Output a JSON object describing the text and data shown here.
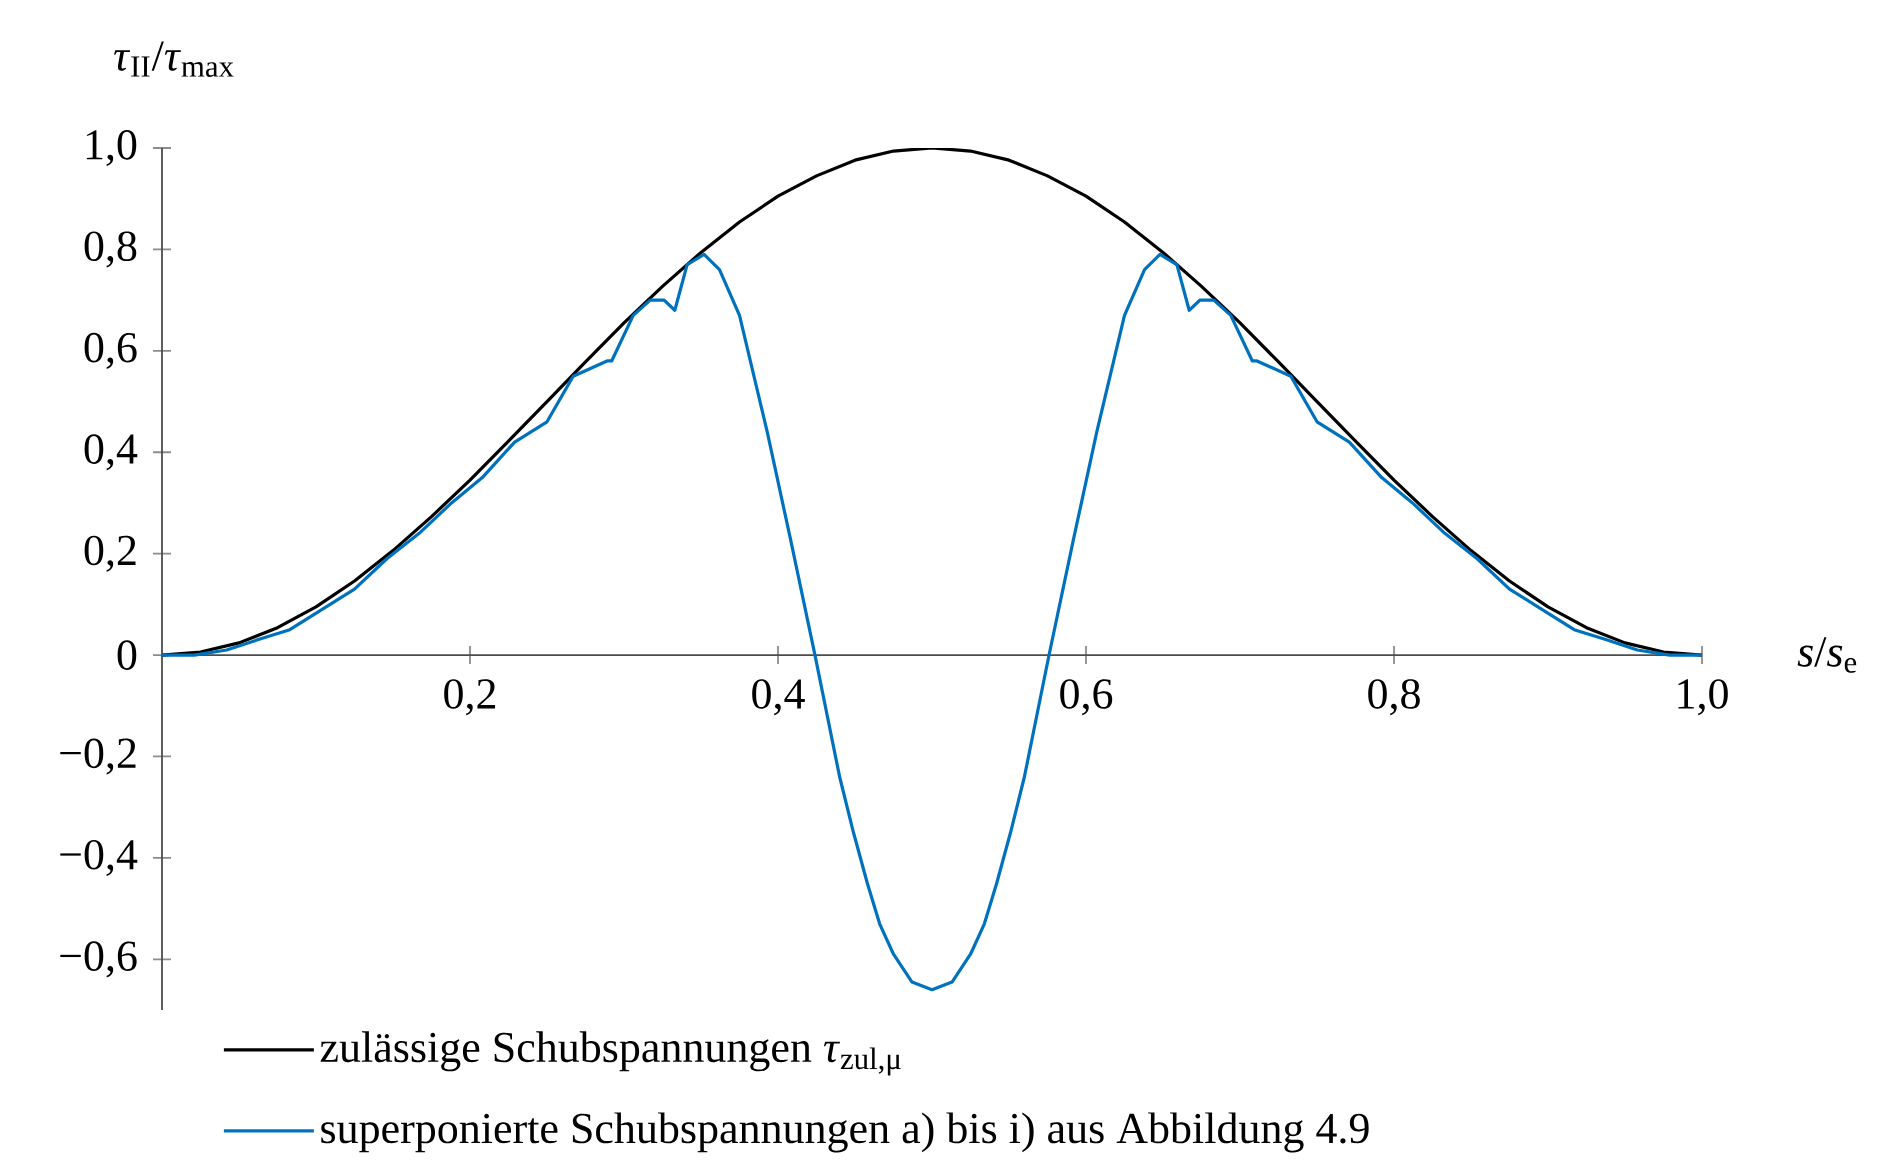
{
  "chart_data": {
    "type": "line",
    "xlabel": "*s*/*s*$_{e}$",
    "ylabel": "*τ*$_{II}$/*τ*$_{max}$",
    "xlim": [
      0,
      1.0
    ],
    "ylim": [
      -0.7,
      1.0
    ],
    "xticks": [
      {
        "value": 0.2,
        "label": "0,2"
      },
      {
        "value": 0.4,
        "label": "0,4"
      },
      {
        "value": 0.6,
        "label": "0,6"
      },
      {
        "value": 0.8,
        "label": "0,8"
      },
      {
        "value": 1.0,
        "label": "1,0"
      }
    ],
    "yticks": [
      {
        "value": -0.6,
        "label": "−0,6"
      },
      {
        "value": -0.4,
        "label": "−0,4"
      },
      {
        "value": -0.2,
        "label": "−0,2"
      },
      0,
      {
        "value": 0.2,
        "label": "0,2"
      },
      {
        "value": 0.4,
        "label": "0,4"
      },
      {
        "value": 0.6,
        "label": "0,6"
      },
      {
        "value": 0.8,
        "label": "0,8"
      },
      {
        "value": 1.0,
        "label": "1,0"
      }
    ],
    "legend": "bottom",
    "series": [
      {
        "name": "zulässige Schubspannungen *τ*$_{zul,μ}$",
        "color": "#000000",
        "x": [
          0,
          0.025,
          0.05,
          0.075,
          0.1,
          0.125,
          0.15,
          0.175,
          0.2,
          0.225,
          0.25,
          0.275,
          0.3,
          0.325,
          0.35,
          0.375,
          0.4,
          0.425,
          0.45,
          0.475,
          0.5,
          0.525,
          0.55,
          0.575,
          0.6,
          0.625,
          0.65,
          0.675,
          0.7,
          0.725,
          0.75,
          0.775,
          0.8,
          0.825,
          0.85,
          0.875,
          0.9,
          0.925,
          0.95,
          0.975,
          1.0
        ],
        "values": [
          0,
          0.006,
          0.024,
          0.054,
          0.095,
          0.146,
          0.206,
          0.273,
          0.345,
          0.422,
          0.5,
          0.578,
          0.655,
          0.727,
          0.794,
          0.854,
          0.905,
          0.945,
          0.976,
          0.994,
          1.0,
          0.994,
          0.976,
          0.945,
          0.905,
          0.854,
          0.794,
          0.727,
          0.655,
          0.578,
          0.5,
          0.422,
          0.345,
          0.273,
          0.206,
          0.146,
          0.095,
          0.054,
          0.024,
          0.006,
          0
        ]
      },
      {
        "name": "superponierte Schubspannungen a) bis i) aus Abbildung 4.9",
        "color": "#0072bd",
        "x": [
          0,
          0.021,
          0.042,
          0.062,
          0.083,
          0.104,
          0.125,
          0.146,
          0.167,
          0.188,
          0.208,
          0.229,
          0.25,
          0.267,
          0.289,
          0.292,
          0.306,
          0.317,
          0.326,
          0.333,
          0.341,
          0.352,
          0.362,
          0.375,
          0.384,
          0.393,
          0.408,
          0.424,
          0.44,
          0.449,
          0.458,
          0.466,
          0.475,
          0.487,
          0.5,
          0.513,
          0.525,
          0.534,
          0.542,
          0.551,
          0.56,
          0.576,
          0.592,
          0.607,
          0.616,
          0.625,
          0.638,
          0.648,
          0.659,
          0.667,
          0.674,
          0.683,
          0.694,
          0.708,
          0.711,
          0.733,
          0.75,
          0.771,
          0.792,
          0.812,
          0.833,
          0.854,
          0.875,
          0.896,
          0.917,
          0.938,
          0.958,
          0.979,
          1.0
        ],
        "values": [
          0,
          0,
          0.01,
          0.03,
          0.05,
          0.09,
          0.13,
          0.19,
          0.24,
          0.3,
          0.35,
          0.42,
          0.46,
          0.55,
          0.58,
          0.58,
          0.67,
          0.7,
          0.7,
          0.68,
          0.77,
          0.79,
          0.76,
          0.67,
          0.555,
          0.44,
          0.23,
          0,
          -0.24,
          -0.35,
          -0.45,
          -0.53,
          -0.59,
          -0.645,
          -0.66,
          -0.645,
          -0.59,
          -0.53,
          -0.45,
          -0.35,
          -0.24,
          0,
          0.23,
          0.44,
          0.555,
          0.67,
          0.76,
          0.79,
          0.77,
          0.68,
          0.7,
          0.7,
          0.67,
          0.58,
          0.58,
          0.55,
          0.46,
          0.42,
          0.35,
          0.3,
          0.24,
          0.19,
          0.13,
          0.09,
          0.05,
          0.03,
          0.01,
          0,
          0
        ]
      }
    ]
  }
}
